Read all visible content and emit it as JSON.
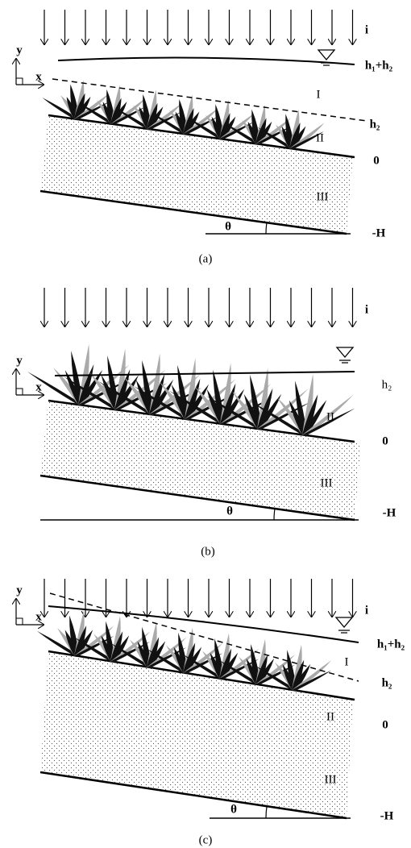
{
  "panels": [
    {
      "caption": "(a)",
      "rain": "i",
      "axis_x": "x",
      "axis_y": "y",
      "surface": "h₁+h₂",
      "top": "h₂",
      "soil": "0",
      "base": "-H",
      "angle": "θ",
      "zones": [
        "I",
        "II",
        "III"
      ]
    },
    {
      "caption": "(b)",
      "rain": "i",
      "axis_x": "x",
      "axis_y": "y",
      "surface": "h₂",
      "soil": "0",
      "base": "-H",
      "angle": "θ",
      "zones": [
        "II",
        "III"
      ]
    },
    {
      "caption": "(c)",
      "rain": "i",
      "axis_x": "x",
      "axis_y": "y",
      "surface": "h₁+h₂",
      "top": "h₂",
      "soil": "0",
      "base": "-H",
      "angle": "θ",
      "zones": [
        "I",
        "II",
        "III"
      ]
    }
  ]
}
